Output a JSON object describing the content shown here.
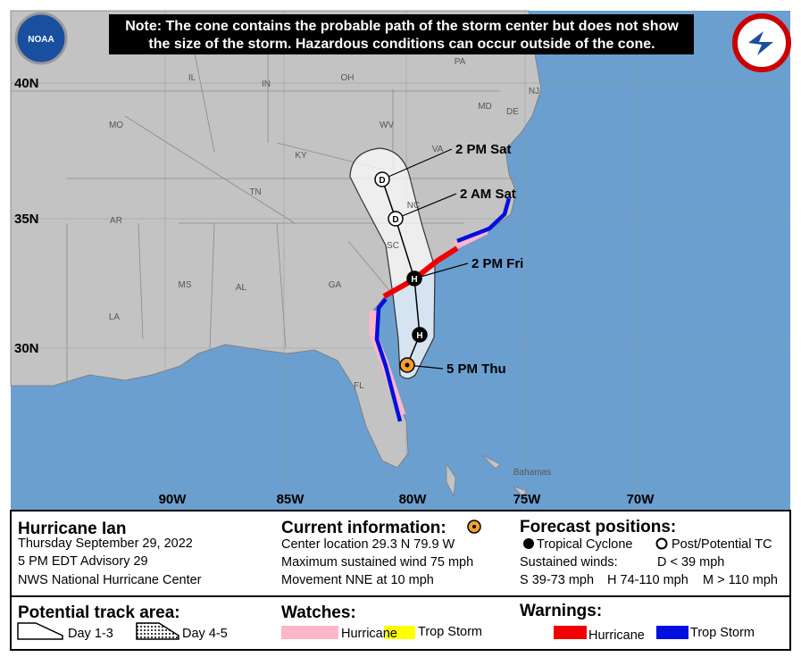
{
  "map": {
    "note": [
      "Note: The cone contains the probable path of the storm center but does not show",
      "the size of the storm. Hazardous conditions can occur outside of the cone."
    ],
    "logo_text": "NOAA",
    "state_labels": [
      "PA",
      "IL",
      "IN",
      "OH",
      "NJ",
      "MD",
      "DE",
      "MO",
      "WV",
      "KY",
      "VA",
      "TN",
      "NC",
      "AR",
      "SC",
      "MS",
      "AL",
      "GA",
      "LA",
      "FL"
    ],
    "place_labels": [
      "Bahamas"
    ],
    "lat_labels": [
      "40N",
      "35N",
      "30N"
    ],
    "lon_labels": [
      "90W",
      "85W",
      "80W",
      "75W",
      "70W"
    ],
    "forecast_points": [
      {
        "label": "5 PM Thu"
      },
      {
        "letter": "H"
      },
      {
        "letter": "H",
        "label": "2 PM Fri"
      },
      {
        "letter": "D",
        "label": "2 AM Sat"
      },
      {
        "letter": "D",
        "label": "2 PM Sat"
      }
    ]
  },
  "info": {
    "storm": {
      "name": "Hurricane Ian",
      "date": "Thursday September 29, 2022",
      "advisory": "5 PM EDT Advisory 29",
      "source": "NWS National Hurricane Center"
    },
    "current": {
      "title": "Current information:",
      "lines": [
        "Center location 29.3 N 79.9 W",
        "Maximum sustained wind 75 mph",
        "Movement NNE at 10 mph"
      ]
    },
    "forecast": {
      "title": "Forecast positions:",
      "tropical": "Tropical Cyclone",
      "post": "Post/Potential TC",
      "winds_title": "Sustained winds:",
      "d": "D < 39 mph",
      "s": "S 39-73 mph",
      "h": "H 74-110 mph",
      "m": "M > 110 mph"
    },
    "track_area": {
      "title": "Potential track area:",
      "day13": "Day 1-3",
      "day45": "Day 4-5"
    },
    "watches": {
      "title": "Watches:",
      "hurricane": "Hurricane",
      "trop_storm": "Trop Storm"
    },
    "warnings": {
      "title": "Warnings:",
      "hurricane": "Hurricane",
      "trop_storm": "Trop Storm"
    }
  }
}
